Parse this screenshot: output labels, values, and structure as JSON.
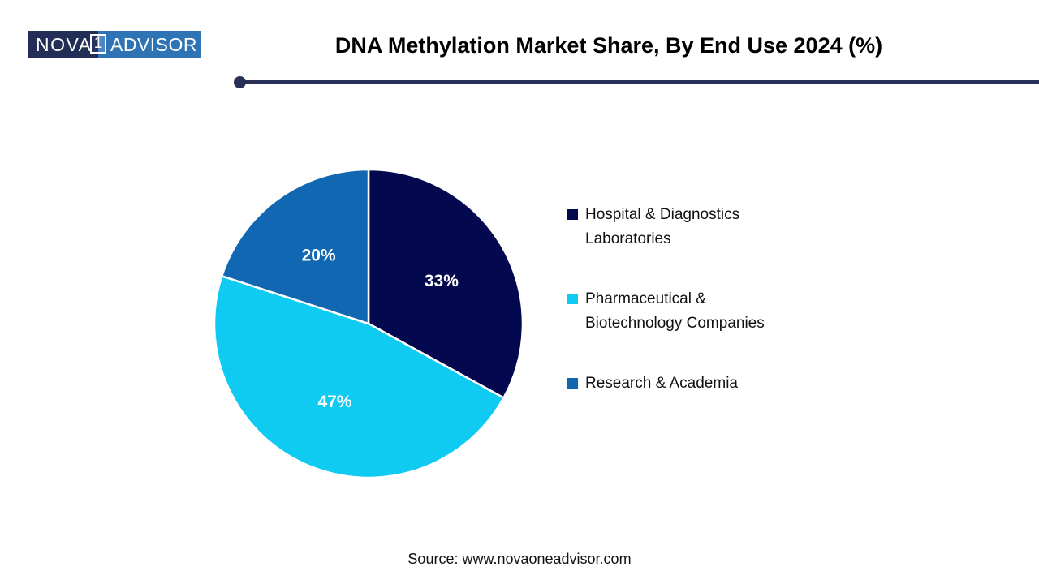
{
  "header": {
    "logo": {
      "part1": "NOVA",
      "badge": "1",
      "part2": "ADVISOR"
    },
    "title": "DNA Methylation Market Share, By End Use 2024 (%)"
  },
  "chart_data": {
    "type": "pie",
    "title": "DNA Methylation Market Share, By End Use 2024 (%)",
    "unit": "%",
    "start_angle_deg": 0,
    "direction": "clockwise",
    "legend_position": "right",
    "segments": [
      {
        "label": "Hospital & Diagnostics Laboratories",
        "legend_lines": "Hospital & Diagnostics\nLaboratories",
        "value": 33,
        "display": "33%",
        "color": "#04084E"
      },
      {
        "label": "Pharmaceutical & Biotechnology Companies",
        "legend_lines": "Pharmaceutical &\nBiotechnology Companies",
        "value": 47,
        "display": "47%",
        "color": "#0FCBF1"
      },
      {
        "label": "Research & Academia",
        "legend_lines": "Research & Academia",
        "value": 20,
        "display": "20%",
        "color": "#1267B2"
      }
    ]
  },
  "footer": {
    "source": "Source: www.novaoneadvisor.com"
  },
  "colors": {
    "divider": "#283058",
    "logo_navy": "#222E55",
    "logo_blue": "#2E74B5",
    "slice_border": "#FFFFFF"
  }
}
